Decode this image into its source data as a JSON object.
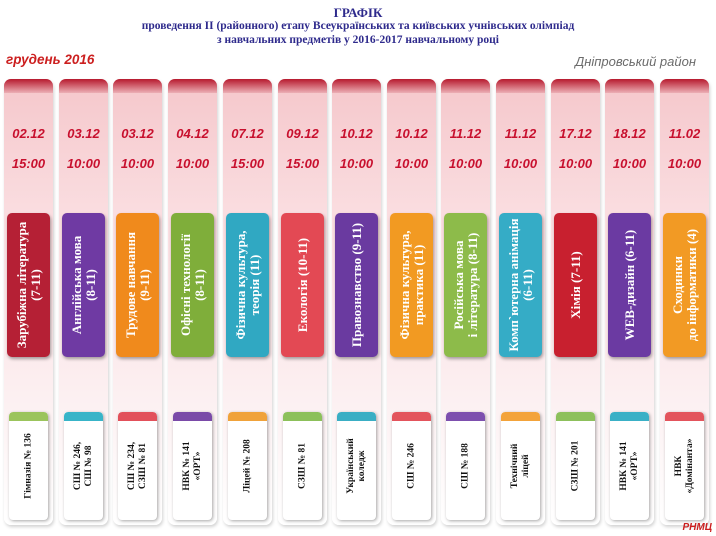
{
  "header": {
    "title": "ГРАФІК",
    "line2": "проведення ІІ (районного) етапу Всеукраїнських та київських учнівських олімпіад",
    "line3": "з навчальних предметів у 2016-2017 навчальному році"
  },
  "month": "грудень 2016",
  "district": "Дніпровський район",
  "footer": "РНМЦ",
  "colors": {
    "title": "#2e2a8c",
    "accent_red": "#c8102e",
    "column_top": "#b71a2e"
  },
  "columns": [
    {
      "date": "02.12",
      "time": "15:00",
      "subject": "Зарубіжна література\n(7-11)",
      "venue": "Гімназія № 136",
      "color": "#b52035",
      "venue_color": "#9bc45c"
    },
    {
      "date": "03.12",
      "time": "10:00",
      "subject": "Англійська мова\n(8-11)",
      "venue": "СШ № 246,\nСШ № 98",
      "color": "#6f3aa3",
      "venue_color": "#38b4c8"
    },
    {
      "date": "03.12",
      "time": "10:00",
      "subject": "Трудове навчання\n(9-11)",
      "venue": "СШ № 234,\nСЗШ № 81",
      "color": "#f08a1c",
      "venue_color": "#e2505a"
    },
    {
      "date": "04.12",
      "time": "10:00",
      "subject": "Офісні технології\n(8-11)",
      "venue": "НВК № 141\n«ОРТ»",
      "color": "#7fae3a",
      "venue_color": "#7a4aa8"
    },
    {
      "date": "07.12",
      "time": "15:00",
      "subject": "Фізична культура,\nтеорія (11)",
      "venue": "Ліцей № 208",
      "color": "#30a8c2",
      "venue_color": "#f0a23a"
    },
    {
      "date": "09.12",
      "time": "15:00",
      "subject": "Екологія (10-11)",
      "venue": "СЗШ № 81",
      "color": "#e34954",
      "venue_color": "#8cc05a"
    },
    {
      "date": "10.12",
      "time": "10:00",
      "subject": "Правознавство (9-11)",
      "venue": "Український\nколедж",
      "color": "#6a3aa0",
      "venue_color": "#3aaec4"
    },
    {
      "date": "10.12",
      "time": "10:00",
      "subject": "Фізична культура,\nпрактика (11)",
      "venue": "СШ № 246",
      "color": "#f29a22",
      "venue_color": "#e3545c"
    },
    {
      "date": "11.12",
      "time": "10:00",
      "subject": "Російська мова\nі література (8-11)",
      "venue": "СШ № 188",
      "color": "#8dbb4a",
      "venue_color": "#7d4fae"
    },
    {
      "date": "11.12",
      "time": "10:00",
      "subject": "Комп`ютерна анімація\n(6-11)",
      "venue": "Технічний\nліцей",
      "color": "#35acc6",
      "venue_color": "#f3a33a"
    },
    {
      "date": "17.12",
      "time": "10:00",
      "subject": "Хімія (7-11)",
      "venue": "СЗШ № 201",
      "color": "#c8202f",
      "venue_color": "#8dc05c"
    },
    {
      "date": "18.12",
      "time": "10:00",
      "subject": "WEB-дизайн (6-11)",
      "venue": "НВК № 141\n«ОРТ»",
      "color": "#6b3aa2",
      "venue_color": "#3ab0c6"
    },
    {
      "date": "11.02",
      "time": "10:00",
      "subject": "Сходинки\nдо інформатики (4)",
      "venue": "НВК\n«Домінанта»",
      "color": "#f29a24",
      "venue_color": "#e3545c"
    }
  ]
}
